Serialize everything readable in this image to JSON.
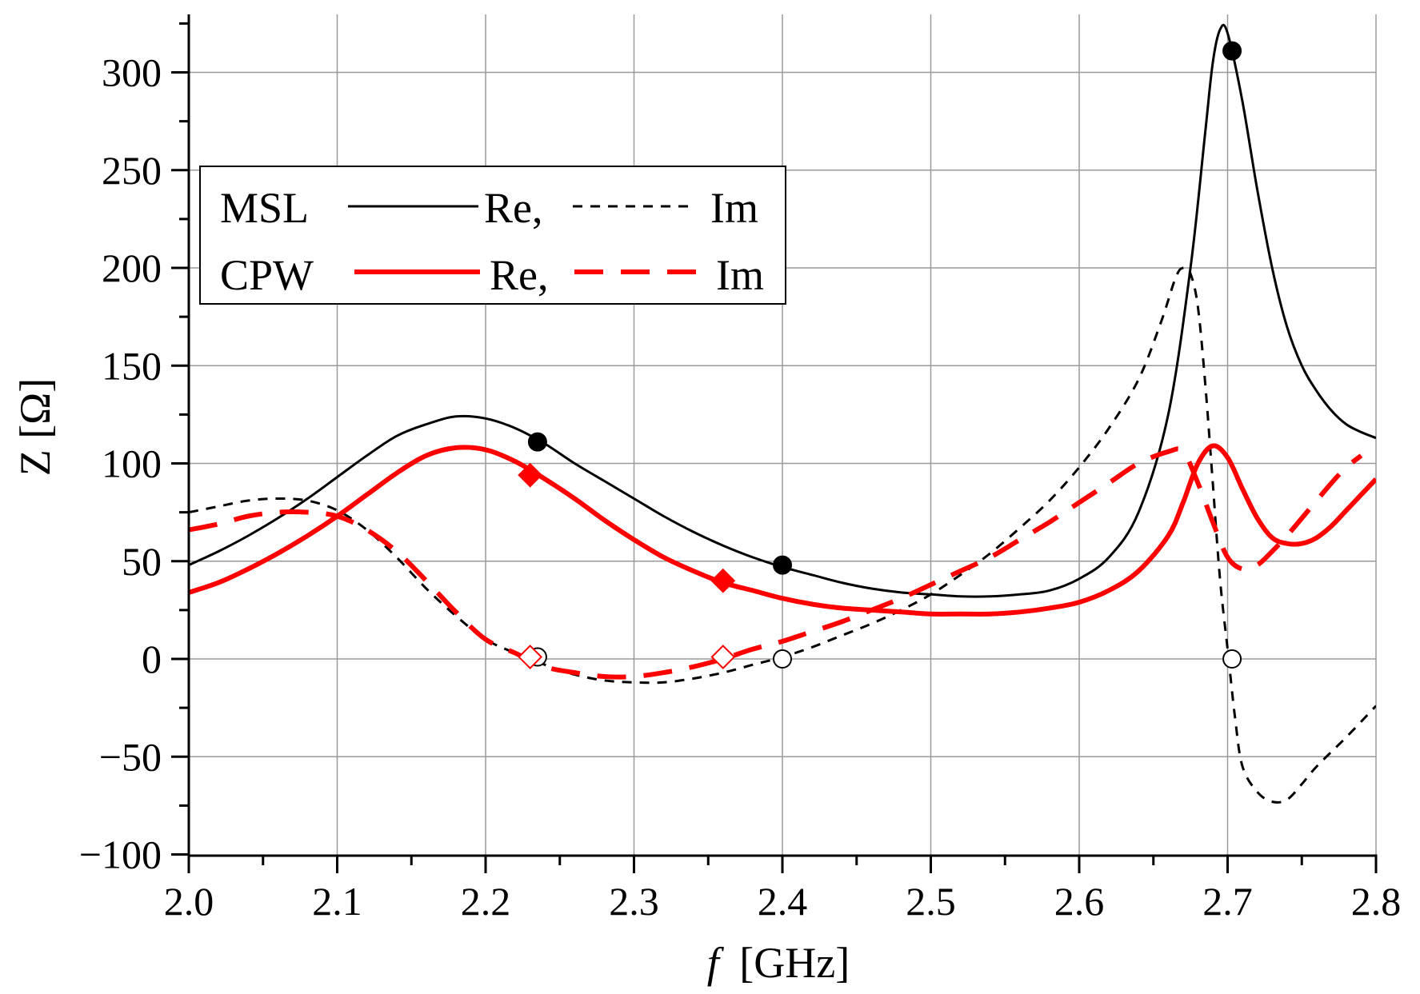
{
  "chart_data": {
    "type": "line",
    "title": "",
    "xlabel_var": "f",
    "xlabel_unit": "[GHz]",
    "ylabel": "Z [Ω]",
    "xlim": [
      2.0,
      2.8
    ],
    "ylim": [
      -100,
      330
    ],
    "x_ticks": [
      2.0,
      2.1,
      2.2,
      2.3,
      2.4,
      2.5,
      2.6,
      2.7,
      2.8
    ],
    "x_tick_labels": [
      "2.0",
      "2.1",
      "2.2",
      "2.3",
      "2.4",
      "2.5",
      "2.6",
      "2.7",
      "2.8"
    ],
    "y_ticks": [
      -100,
      -50,
      0,
      50,
      100,
      150,
      200,
      250,
      300
    ],
    "y_tick_labels": [
      "−100",
      "−50",
      "0",
      "50",
      "100",
      "150",
      "200",
      "250",
      "300"
    ],
    "grid": true,
    "legend": {
      "placement": "top-left",
      "rows": [
        {
          "group": "MSL",
          "re_label": "Re,",
          "im_label": "Im"
        },
        {
          "group": "CPW",
          "re_label": "Re,",
          "im_label": "Im"
        }
      ]
    },
    "colors": {
      "msl": "#000000",
      "cpw": "#ff0000"
    },
    "series": [
      {
        "name": "MSL Re",
        "color": "#000000",
        "style": "solid",
        "width": 3,
        "points": [
          [
            2.0,
            48
          ],
          [
            2.02,
            55
          ],
          [
            2.04,
            63
          ],
          [
            2.06,
            72
          ],
          [
            2.08,
            82
          ],
          [
            2.1,
            93
          ],
          [
            2.12,
            104
          ],
          [
            2.14,
            114
          ],
          [
            2.16,
            120
          ],
          [
            2.18,
            124
          ],
          [
            2.2,
            123
          ],
          [
            2.22,
            118
          ],
          [
            2.24,
            110
          ],
          [
            2.26,
            100
          ],
          [
            2.28,
            91
          ],
          [
            2.3,
            82
          ],
          [
            2.32,
            73
          ],
          [
            2.34,
            65
          ],
          [
            2.36,
            58
          ],
          [
            2.38,
            52
          ],
          [
            2.4,
            47
          ],
          [
            2.42,
            43
          ],
          [
            2.44,
            39
          ],
          [
            2.46,
            36
          ],
          [
            2.48,
            34
          ],
          [
            2.5,
            33
          ],
          [
            2.52,
            32
          ],
          [
            2.54,
            32
          ],
          [
            2.56,
            33
          ],
          [
            2.58,
            35
          ],
          [
            2.6,
            41
          ],
          [
            2.62,
            52
          ],
          [
            2.64,
            75
          ],
          [
            2.66,
            125
          ],
          [
            2.675,
            200
          ],
          [
            2.685,
            270
          ],
          [
            2.69,
            305
          ],
          [
            2.695,
            322
          ],
          [
            2.7,
            320
          ],
          [
            2.71,
            285
          ],
          [
            2.72,
            240
          ],
          [
            2.73,
            200
          ],
          [
            2.74,
            170
          ],
          [
            2.75,
            150
          ],
          [
            2.76,
            137
          ],
          [
            2.77,
            127
          ],
          [
            2.78,
            120
          ],
          [
            2.79,
            116
          ],
          [
            2.8,
            113
          ]
        ]
      },
      {
        "name": "MSL Im",
        "color": "#000000",
        "style": "dashed",
        "width": 3,
        "points": [
          [
            2.0,
            75
          ],
          [
            2.02,
            78
          ],
          [
            2.04,
            81
          ],
          [
            2.06,
            82
          ],
          [
            2.08,
            81
          ],
          [
            2.1,
            76
          ],
          [
            2.12,
            66
          ],
          [
            2.14,
            52
          ],
          [
            2.16,
            36
          ],
          [
            2.18,
            22
          ],
          [
            2.2,
            10
          ],
          [
            2.22,
            3
          ],
          [
            2.24,
            -3
          ],
          [
            2.26,
            -8
          ],
          [
            2.28,
            -11
          ],
          [
            2.3,
            -12
          ],
          [
            2.32,
            -12
          ],
          [
            2.34,
            -10
          ],
          [
            2.36,
            -7
          ],
          [
            2.38,
            -3
          ],
          [
            2.4,
            1
          ],
          [
            2.42,
            6
          ],
          [
            2.44,
            12
          ],
          [
            2.46,
            18
          ],
          [
            2.48,
            25
          ],
          [
            2.5,
            33
          ],
          [
            2.52,
            43
          ],
          [
            2.54,
            54
          ],
          [
            2.56,
            67
          ],
          [
            2.58,
            81
          ],
          [
            2.6,
            98
          ],
          [
            2.62,
            118
          ],
          [
            2.64,
            143
          ],
          [
            2.655,
            172
          ],
          [
            2.665,
            195
          ],
          [
            2.67,
            200
          ],
          [
            2.675,
            197
          ],
          [
            2.68,
            180
          ],
          [
            2.685,
            140
          ],
          [
            2.69,
            90
          ],
          [
            2.695,
            40
          ],
          [
            2.7,
            5
          ],
          [
            2.705,
            -30
          ],
          [
            2.71,
            -55
          ],
          [
            2.72,
            -68
          ],
          [
            2.73,
            -73
          ],
          [
            2.74,
            -72
          ],
          [
            2.75,
            -64
          ],
          [
            2.76,
            -55
          ],
          [
            2.78,
            -40
          ],
          [
            2.8,
            -24
          ]
        ]
      },
      {
        "name": "CPW Re",
        "color": "#ff0000",
        "style": "solid",
        "width": 6,
        "points": [
          [
            2.0,
            34
          ],
          [
            2.02,
            39
          ],
          [
            2.04,
            46
          ],
          [
            2.06,
            54
          ],
          [
            2.08,
            63
          ],
          [
            2.1,
            73
          ],
          [
            2.12,
            84
          ],
          [
            2.14,
            95
          ],
          [
            2.16,
            104
          ],
          [
            2.18,
            108
          ],
          [
            2.2,
            107
          ],
          [
            2.22,
            101
          ],
          [
            2.24,
            92
          ],
          [
            2.26,
            82
          ],
          [
            2.28,
            71
          ],
          [
            2.3,
            61
          ],
          [
            2.32,
            52
          ],
          [
            2.34,
            45
          ],
          [
            2.36,
            39
          ],
          [
            2.38,
            35
          ],
          [
            2.4,
            31
          ],
          [
            2.42,
            28
          ],
          [
            2.44,
            26
          ],
          [
            2.46,
            25
          ],
          [
            2.48,
            24
          ],
          [
            2.5,
            23
          ],
          [
            2.52,
            23
          ],
          [
            2.54,
            23
          ],
          [
            2.56,
            24
          ],
          [
            2.58,
            26
          ],
          [
            2.6,
            29
          ],
          [
            2.62,
            35
          ],
          [
            2.64,
            45
          ],
          [
            2.66,
            63
          ],
          [
            2.67,
            80
          ],
          [
            2.68,
            100
          ],
          [
            2.69,
            109
          ],
          [
            2.7,
            103
          ],
          [
            2.71,
            87
          ],
          [
            2.72,
            72
          ],
          [
            2.73,
            62
          ],
          [
            2.74,
            59
          ],
          [
            2.75,
            59
          ],
          [
            2.76,
            62
          ],
          [
            2.77,
            68
          ],
          [
            2.78,
            76
          ],
          [
            2.79,
            84
          ],
          [
            2.8,
            92
          ]
        ]
      },
      {
        "name": "CPW Im",
        "color": "#ff0000",
        "style": "longdash",
        "width": 6,
        "points": [
          [
            2.0,
            66
          ],
          [
            2.02,
            69
          ],
          [
            2.04,
            73
          ],
          [
            2.06,
            75
          ],
          [
            2.08,
            75
          ],
          [
            2.1,
            73
          ],
          [
            2.12,
            66
          ],
          [
            2.14,
            55
          ],
          [
            2.16,
            40
          ],
          [
            2.18,
            24
          ],
          [
            2.2,
            10
          ],
          [
            2.22,
            3
          ],
          [
            2.24,
            -4
          ],
          [
            2.26,
            -7
          ],
          [
            2.28,
            -9
          ],
          [
            2.3,
            -9
          ],
          [
            2.32,
            -7
          ],
          [
            2.34,
            -4
          ],
          [
            2.36,
            0
          ],
          [
            2.38,
            5
          ],
          [
            2.4,
            9
          ],
          [
            2.42,
            14
          ],
          [
            2.44,
            19
          ],
          [
            2.46,
            25
          ],
          [
            2.48,
            31
          ],
          [
            2.5,
            38
          ],
          [
            2.52,
            45
          ],
          [
            2.54,
            52
          ],
          [
            2.56,
            61
          ],
          [
            2.58,
            70
          ],
          [
            2.6,
            80
          ],
          [
            2.62,
            90
          ],
          [
            2.64,
            100
          ],
          [
            2.66,
            106
          ],
          [
            2.67,
            106
          ],
          [
            2.68,
            90
          ],
          [
            2.69,
            70
          ],
          [
            2.7,
            52
          ],
          [
            2.71,
            46
          ],
          [
            2.72,
            48
          ],
          [
            2.73,
            55
          ],
          [
            2.74,
            63
          ],
          [
            2.75,
            72
          ],
          [
            2.76,
            81
          ],
          [
            2.77,
            90
          ],
          [
            2.78,
            98
          ],
          [
            2.79,
            104
          ]
        ]
      }
    ],
    "markers": [
      {
        "series": "MSL Re",
        "x": 2.235,
        "y": 111,
        "shape": "circle",
        "fill": "#000000",
        "stroke": "#000000"
      },
      {
        "series": "MSL Re",
        "x": 2.4,
        "y": 48,
        "shape": "circle",
        "fill": "#000000",
        "stroke": "#000000"
      },
      {
        "series": "MSL Re",
        "x": 2.703,
        "y": 311,
        "shape": "circle",
        "fill": "#000000",
        "stroke": "#000000"
      },
      {
        "series": "MSL Im",
        "x": 2.235,
        "y": 1,
        "shape": "circle",
        "fill": "#ffffff",
        "stroke": "#000000"
      },
      {
        "series": "MSL Im",
        "x": 2.4,
        "y": 0,
        "shape": "circle",
        "fill": "#ffffff",
        "stroke": "#000000"
      },
      {
        "series": "MSL Im",
        "x": 2.703,
        "y": 0,
        "shape": "circle",
        "fill": "#ffffff",
        "stroke": "#000000"
      },
      {
        "series": "CPW Re",
        "x": 2.23,
        "y": 94,
        "shape": "diamond",
        "fill": "#ff0000",
        "stroke": "#ff0000"
      },
      {
        "series": "CPW Re",
        "x": 2.36,
        "y": 40,
        "shape": "diamond",
        "fill": "#ff0000",
        "stroke": "#ff0000"
      },
      {
        "series": "CPW Im",
        "x": 2.23,
        "y": 1,
        "shape": "diamond",
        "fill": "#ffffff",
        "stroke": "#ff0000"
      },
      {
        "series": "CPW Im",
        "x": 2.36,
        "y": 1,
        "shape": "diamond",
        "fill": "#ffffff",
        "stroke": "#ff0000"
      }
    ]
  }
}
